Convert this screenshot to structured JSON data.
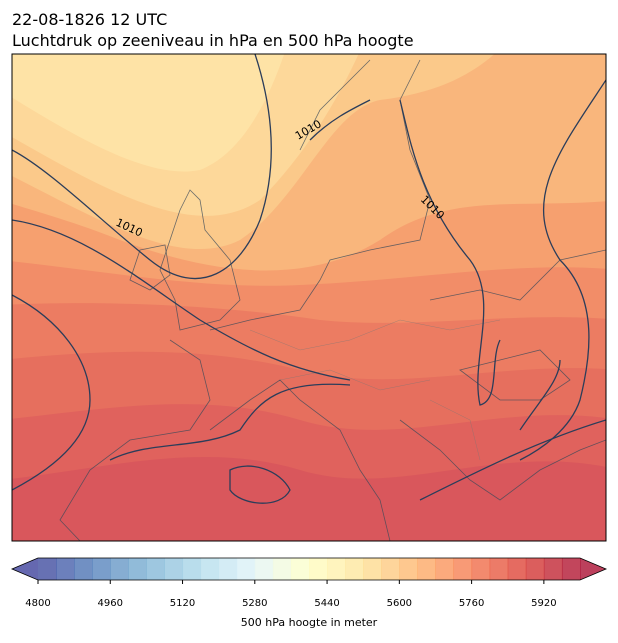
{
  "header": {
    "title": "22-08-1826 12 UTC",
    "subtitle": "Luchtdruk op zeeniveau in hPa en 500 hPa hoogte"
  },
  "map": {
    "isobar_labels": [
      "1010",
      "1010",
      "1010"
    ]
  },
  "colorbar": {
    "lim": [
      4800,
      6000
    ],
    "ticks": [
      4800,
      4960,
      5120,
      5280,
      5440,
      5600,
      5760,
      5920
    ],
    "label": "500 hPa hoogte in meter"
  }
}
